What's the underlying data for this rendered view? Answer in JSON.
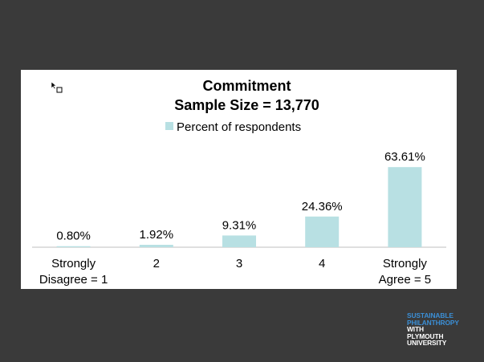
{
  "chart_data": {
    "type": "bar",
    "title": "Commitment",
    "subtitle": "Sample Size = 13,770",
    "legend": {
      "position": "top",
      "entries": [
        "Percent of respondents"
      ]
    },
    "categories": [
      [
        "Strongly",
        "Disagree = 1"
      ],
      [
        "2"
      ],
      [
        "3"
      ],
      [
        "4"
      ],
      [
        "Strongly",
        "Agree = 5"
      ]
    ],
    "series": [
      {
        "name": "Percent of respondents",
        "values": [
          0.8,
          1.92,
          9.31,
          24.36,
          63.61
        ]
      }
    ],
    "data_labels": [
      "0.80%",
      "1.92%",
      "9.31%",
      "24.36%",
      "63.61%"
    ],
    "ylim": [
      0,
      65
    ],
    "grid": false,
    "colors": {
      "bar": "#b8e0e3",
      "axis": "#bfbfbf"
    }
  },
  "logo": {
    "lines_blue": [
      "SUSTAINABLE",
      "PHILANTHROPY"
    ],
    "lines_white": [
      "WITH",
      "PLYMOUTH",
      "UNIVERSITY"
    ]
  },
  "icons": {
    "cursor": "cursor-icon"
  }
}
